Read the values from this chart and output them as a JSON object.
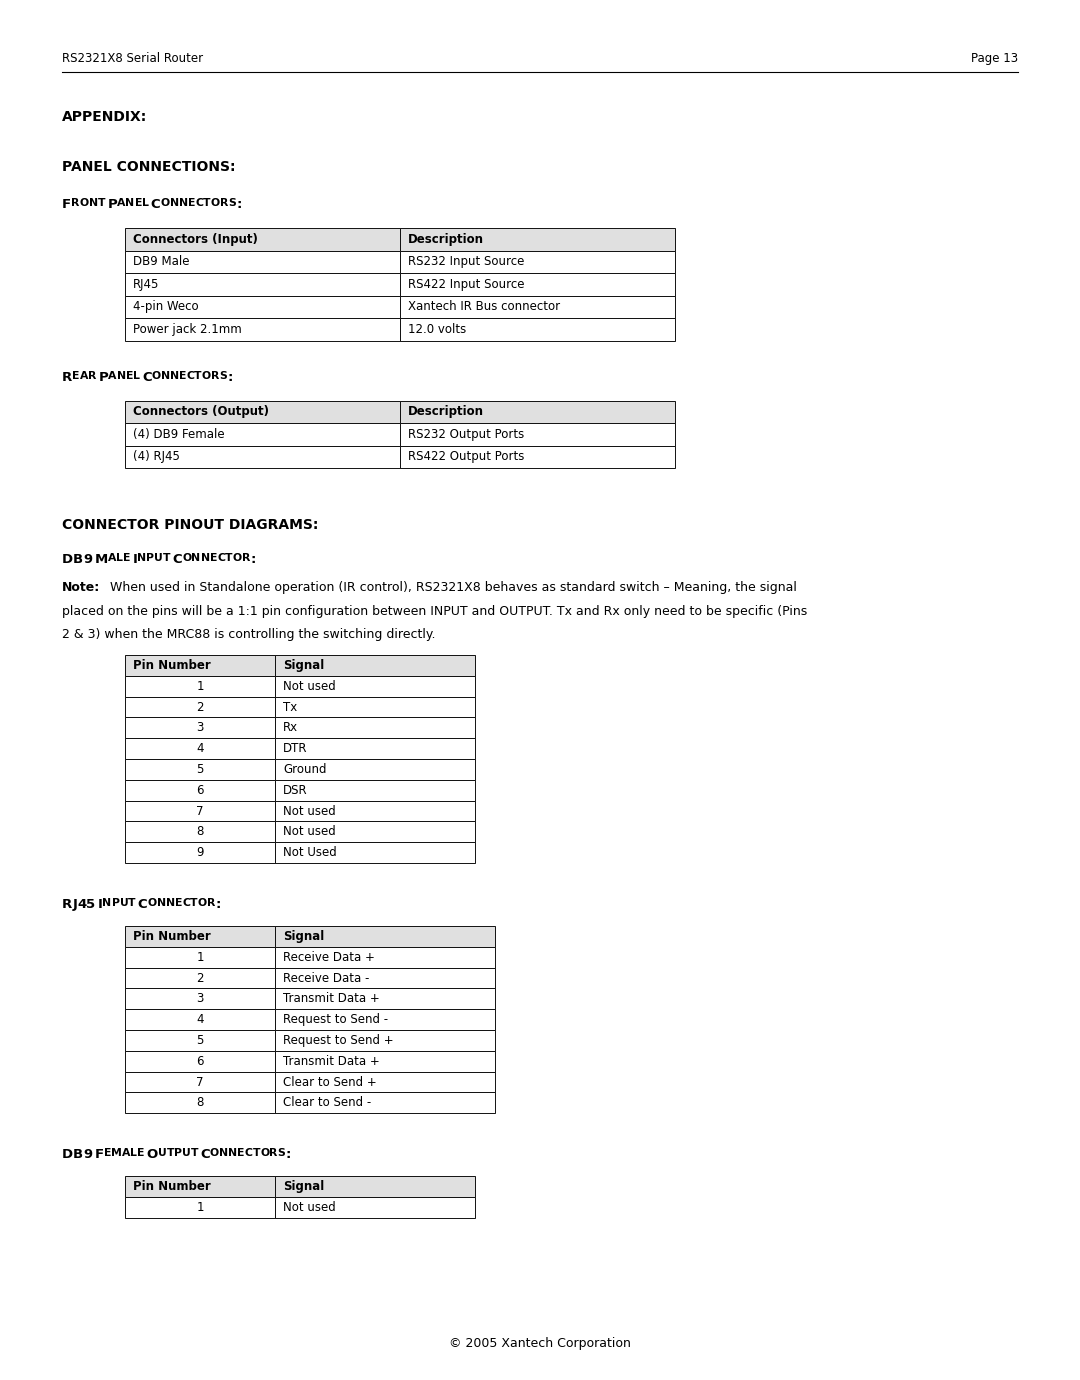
{
  "header_left": "RS2321X8 Serial Router",
  "header_right": "Page 13",
  "appendix_title": "APPENDIX:",
  "panel_connections_title": "PANEL CONNECTIONS:",
  "front_table_headers": [
    "Connectors (Input)",
    "Description"
  ],
  "front_table_rows": [
    [
      "DB9 Male",
      "RS232 Input Source"
    ],
    [
      "RJ45",
      "RS422 Input Source"
    ],
    [
      "4-pin Weco",
      "Xantech IR Bus connector"
    ],
    [
      "Power jack 2.1mm",
      "12.0 volts"
    ]
  ],
  "rear_table_headers": [
    "Connectors (Output)",
    "Description"
  ],
  "rear_table_rows": [
    [
      "(4) DB9 Female",
      "RS232 Output Ports"
    ],
    [
      "(4) RJ45",
      "RS422 Output Ports"
    ]
  ],
  "connector_pinout_title": "CONNECTOR PINOUT DIAGRAMS:",
  "db9_male_note_bold": "Note:",
  "db9_male_note_rest": " When used in Standalone operation (IR control), RS2321X8 behaves as standard switch – Meaning, the signal\nplaced on the pins will be a 1:1 pin configuration between INPUT and OUTPUT. Tx and Rx only need to be specific (Pins\n2 & 3) when the MRC88 is controlling the switching directly.",
  "db9_male_table_headers": [
    "Pin Number",
    "Signal"
  ],
  "db9_male_table_rows": [
    [
      "1",
      "Not used"
    ],
    [
      "2",
      "Tx"
    ],
    [
      "3",
      "Rx"
    ],
    [
      "4",
      "DTR"
    ],
    [
      "5",
      "Ground"
    ],
    [
      "6",
      "DSR"
    ],
    [
      "7",
      "Not used"
    ],
    [
      "8",
      "Not used"
    ],
    [
      "9",
      "Not Used"
    ]
  ],
  "rj45_table_headers": [
    "Pin Number",
    "Signal"
  ],
  "rj45_table_rows": [
    [
      "1",
      "Receive Data +"
    ],
    [
      "2",
      "Receive Data -"
    ],
    [
      "3",
      "Transmit Data +"
    ],
    [
      "4",
      "Request to Send -"
    ],
    [
      "5",
      "Request to Send +"
    ],
    [
      "6",
      "Transmit Data +"
    ],
    [
      "7",
      "Clear to Send +"
    ],
    [
      "8",
      "Clear to Send -"
    ]
  ],
  "db9_female_table_headers": [
    "Pin Number",
    "Signal"
  ],
  "db9_female_table_rows": [
    [
      "1",
      "Not used"
    ]
  ],
  "footer": "© 2005 Xantech Corporation",
  "bg_color": "#ffffff"
}
